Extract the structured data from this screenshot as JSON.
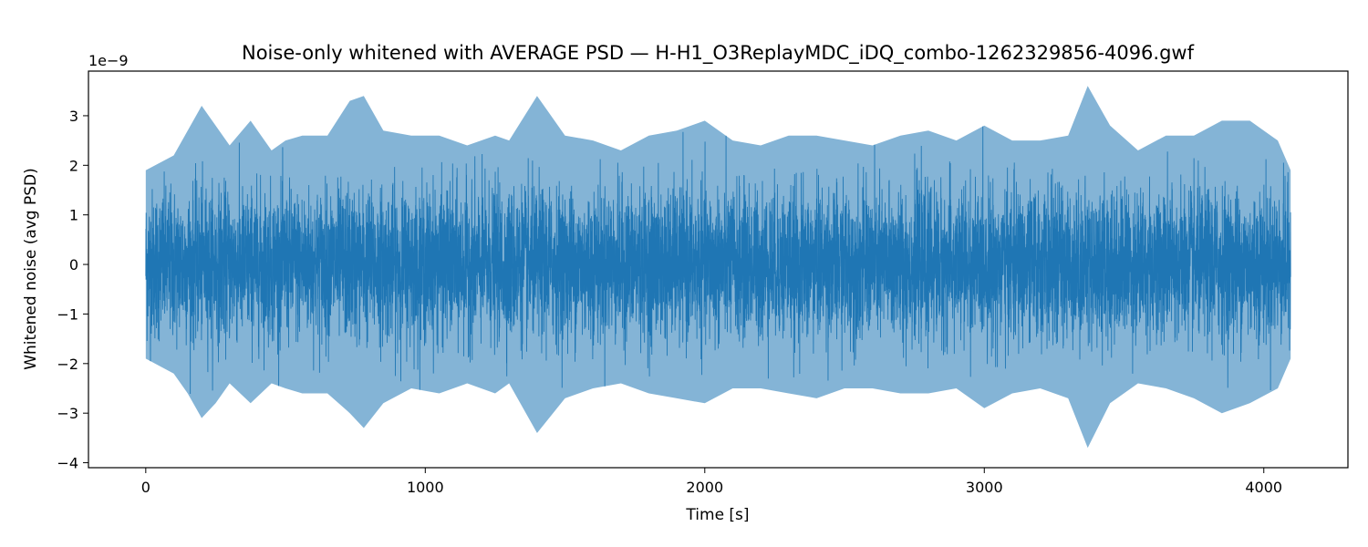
{
  "chart_data": {
    "type": "line",
    "title": "Noise-only whitened with AVERAGE PSD — H-H1_O3ReplayMDC_iDQ_combo-1262329856-4096.gwf",
    "xlabel": "Time [s]",
    "ylabel": "Whitened noise (avg PSD)",
    "y_offset_label": "1e−9",
    "xlim": [
      -205,
      4301
    ],
    "ylim": [
      -4.1,
      3.9
    ],
    "x_ticks": [
      0,
      1000,
      2000,
      3000,
      4000
    ],
    "x_tick_labels": [
      "0",
      "1000",
      "2000",
      "3000",
      "4000"
    ],
    "y_ticks": [
      -4,
      -3,
      -2,
      -1,
      0,
      1,
      2,
      3
    ],
    "y_tick_labels": [
      "−4",
      "−3",
      "−2",
      "−1",
      "0",
      "1",
      "2",
      "3"
    ],
    "grid": false,
    "legend": "none",
    "line_color": "#1f77b4",
    "series": [
      {
        "x_range": [
          0,
          4096
        ],
        "envelope": {
          "x": [
            0,
            100,
            150,
            200,
            250,
            300,
            375,
            450,
            500,
            560,
            650,
            730,
            780,
            850,
            950,
            1050,
            1150,
            1250,
            1300,
            1400,
            1500,
            1600,
            1700,
            1800,
            1900,
            2000,
            2100,
            2200,
            2300,
            2400,
            2500,
            2600,
            2700,
            2800,
            2900,
            3000,
            3100,
            3200,
            3300,
            3370,
            3450,
            3550,
            3650,
            3750,
            3850,
            3950,
            4050,
            4096
          ],
          "upper": [
            1.9,
            2.2,
            2.7,
            3.2,
            2.8,
            2.4,
            2.9,
            2.3,
            2.5,
            2.6,
            2.6,
            3.3,
            3.4,
            2.7,
            2.6,
            2.6,
            2.4,
            2.6,
            2.5,
            3.4,
            2.6,
            2.5,
            2.3,
            2.6,
            2.7,
            2.9,
            2.5,
            2.4,
            2.6,
            2.6,
            2.5,
            2.4,
            2.6,
            2.7,
            2.5,
            2.8,
            2.5,
            2.5,
            2.6,
            3.6,
            2.8,
            2.3,
            2.6,
            2.6,
            2.9,
            2.9,
            2.5,
            1.9
          ],
          "lower": [
            -1.9,
            -2.2,
            -2.6,
            -3.1,
            -2.8,
            -2.4,
            -2.8,
            -2.4,
            -2.5,
            -2.6,
            -2.6,
            -3.0,
            -3.3,
            -2.8,
            -2.5,
            -2.6,
            -2.4,
            -2.6,
            -2.4,
            -3.4,
            -2.7,
            -2.5,
            -2.4,
            -2.6,
            -2.7,
            -2.8,
            -2.5,
            -2.5,
            -2.6,
            -2.7,
            -2.5,
            -2.5,
            -2.6,
            -2.6,
            -2.5,
            -2.9,
            -2.6,
            -2.5,
            -2.7,
            -3.7,
            -2.8,
            -2.4,
            -2.5,
            -2.7,
            -3.0,
            -2.8,
            -2.5,
            -1.9
          ]
        },
        "rms": 0.75
      }
    ]
  }
}
